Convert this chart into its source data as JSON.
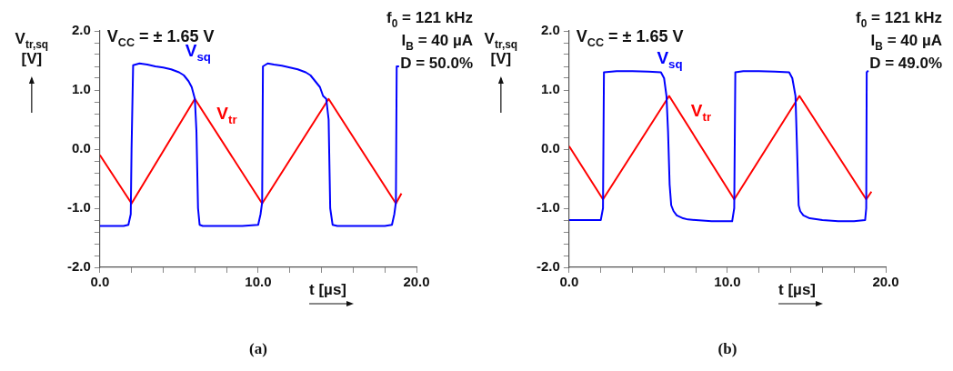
{
  "chart_data": [
    {
      "type": "line",
      "title": "(a)",
      "xlabel": "t [µs]",
      "ylabel": "V$_{tr,sq}$ [V]",
      "annotations": [
        "V$_{CC}$ = ± 1.65 V",
        "f$_{0}$ = 121 kHz",
        "I$_{B}$ = 40 µA",
        "D = 50.0%"
      ],
      "series": [
        {
          "name": "V$_{sq}$",
          "color": "#0000ff",
          "x": [
            0,
            0.5,
            1,
            1.5,
            1.8,
            1.95,
            2.0,
            2.1,
            2.5,
            3.0,
            3.5,
            4.0,
            4.5,
            5.0,
            5.3,
            5.6,
            5.8,
            6.0,
            6.1,
            6.2,
            6.3,
            6.5,
            7,
            8,
            9,
            10.0,
            10.15,
            10.25,
            10.3,
            10.6,
            11,
            11.5,
            12,
            12.5,
            13,
            13.3,
            13.6,
            13.9,
            14.1,
            14.3,
            14.45,
            14.55,
            14.7,
            15,
            16,
            17,
            18,
            18.45,
            18.6,
            18.7,
            18.75,
            18.9
          ],
          "values": [
            -1.3,
            -1.3,
            -1.3,
            -1.3,
            -1.28,
            -1.1,
            0.0,
            1.42,
            1.45,
            1.43,
            1.4,
            1.38,
            1.35,
            1.3,
            1.25,
            1.15,
            1.05,
            0.85,
            0.3,
            -1.0,
            -1.28,
            -1.3,
            -1.3,
            -1.3,
            -1.3,
            -1.28,
            -1.1,
            -0.9,
            1.4,
            1.45,
            1.43,
            1.41,
            1.38,
            1.35,
            1.3,
            1.25,
            1.15,
            1.05,
            0.9,
            0.85,
            0.5,
            -1.0,
            -1.28,
            -1.3,
            -1.3,
            -1.3,
            -1.3,
            -1.28,
            -1.1,
            -0.9,
            1.4,
            1.4
          ]
        },
        {
          "name": "V$_{tr}$",
          "color": "#ff0000",
          "x": [
            0,
            2.0,
            6.0,
            10.25,
            14.45,
            18.7,
            19.05
          ],
          "values": [
            -0.1,
            -0.92,
            0.85,
            -0.92,
            0.85,
            -0.92,
            -0.75
          ]
        }
      ],
      "xlim": [
        0,
        20
      ],
      "xticks": [
        {
          "value": 0,
          "label": "0.0"
        },
        {
          "value": 2,
          "label": null
        },
        {
          "value": 4,
          "label": null
        },
        {
          "value": 6,
          "label": null
        },
        {
          "value": 8,
          "label": null
        },
        {
          "value": 10,
          "label": "10.0"
        },
        {
          "value": 12,
          "label": null
        },
        {
          "value": 14,
          "label": null
        },
        {
          "value": 16,
          "label": null
        },
        {
          "value": 18,
          "label": null
        },
        {
          "value": 20,
          "label": "20.0"
        }
      ],
      "ylim": [
        -2,
        2
      ],
      "yticks": [
        {
          "value": -2,
          "label": "-2.0"
        },
        {
          "value": -1.8,
          "label": null
        },
        {
          "value": -1.6,
          "label": null
        },
        {
          "value": -1.4,
          "label": null
        },
        {
          "value": -1.2,
          "label": null
        },
        {
          "value": -1,
          "label": "-1.0"
        },
        {
          "value": -0.8,
          "label": null
        },
        {
          "value": -0.6,
          "label": null
        },
        {
          "value": -0.4,
          "label": null
        },
        {
          "value": -0.2,
          "label": null
        },
        {
          "value": 0,
          "label": "0.0"
        },
        {
          "value": 0.2,
          "label": null
        },
        {
          "value": 0.4,
          "label": null
        },
        {
          "value": 0.6,
          "label": null
        },
        {
          "value": 0.8,
          "label": null
        },
        {
          "value": 1,
          "label": "1.0"
        },
        {
          "value": 1.2,
          "label": null
        },
        {
          "value": 1.4,
          "label": null
        },
        {
          "value": 1.6,
          "label": null
        },
        {
          "value": 1.8,
          "label": null
        },
        {
          "value": 2,
          "label": "2.0"
        }
      ],
      "marker": "none",
      "line_style": "solid"
    },
    {
      "type": "line",
      "title": "(b)",
      "xlabel": "t [µs]",
      "ylabel": "V$_{tr,sq}$ [V]",
      "annotations": [
        "V$_{CC}$ = ± 1.65 V",
        "f$_{0}$ = 121 kHz",
        "I$_{B}$ = 40 µA",
        "D = 49.0%"
      ],
      "series": [
        {
          "name": "V$_{sq}$",
          "color": "#0000ff",
          "x": [
            0,
            1,
            2.0,
            2.14,
            2.2,
            3,
            4,
            5,
            5.8,
            6.0,
            6.15,
            6.25,
            6.35,
            6.45,
            6.6,
            6.8,
            7.2,
            7.5,
            8,
            9,
            10.3,
            10.43,
            10.5,
            11,
            12,
            13,
            13.9,
            14.1,
            14.3,
            14.4,
            14.5,
            14.6,
            14.8,
            15.2,
            16,
            17,
            18,
            18.7,
            18.77,
            18.8,
            18.9
          ],
          "values": [
            -1.2,
            -1.2,
            -1.2,
            -1.0,
            1.3,
            1.32,
            1.32,
            1.31,
            1.3,
            1.2,
            0.9,
            0.3,
            -0.6,
            -0.95,
            -1.05,
            -1.12,
            -1.17,
            -1.19,
            -1.2,
            -1.22,
            -1.22,
            -1.0,
            1.3,
            1.32,
            1.32,
            1.31,
            1.3,
            1.2,
            0.9,
            0.0,
            -0.95,
            -1.05,
            -1.12,
            -1.17,
            -1.2,
            -1.22,
            -1.22,
            -1.2,
            -1.0,
            1.3,
            1.33
          ]
        },
        {
          "name": "V$_{tr}$",
          "color": "#ff0000",
          "x": [
            0,
            2.14,
            6.32,
            10.43,
            14.55,
            18.77,
            19.1
          ],
          "values": [
            0.05,
            -0.85,
            0.9,
            -0.85,
            0.9,
            -0.85,
            -0.72
          ]
        }
      ],
      "xlim": [
        0,
        20
      ],
      "xticks": [
        {
          "value": 0,
          "label": "0.0"
        },
        {
          "value": 2,
          "label": null
        },
        {
          "value": 4,
          "label": null
        },
        {
          "value": 6,
          "label": null
        },
        {
          "value": 8,
          "label": null
        },
        {
          "value": 10,
          "label": "10.0"
        },
        {
          "value": 12,
          "label": null
        },
        {
          "value": 14,
          "label": null
        },
        {
          "value": 16,
          "label": null
        },
        {
          "value": 18,
          "label": null
        },
        {
          "value": 20,
          "label": "20.0"
        }
      ],
      "ylim": [
        -2,
        2
      ],
      "yticks": [
        {
          "value": -2,
          "label": "-2.0"
        },
        {
          "value": -1.8,
          "label": null
        },
        {
          "value": -1.6,
          "label": null
        },
        {
          "value": -1.4,
          "label": null
        },
        {
          "value": -1.2,
          "label": null
        },
        {
          "value": -1,
          "label": "-1.0"
        },
        {
          "value": -0.8,
          "label": null
        },
        {
          "value": -0.6,
          "label": null
        },
        {
          "value": -0.4,
          "label": null
        },
        {
          "value": -0.2,
          "label": null
        },
        {
          "value": 0,
          "label": "0.0"
        },
        {
          "value": 0.2,
          "label": null
        },
        {
          "value": 0.4,
          "label": null
        },
        {
          "value": 0.6,
          "label": null
        },
        {
          "value": 0.8,
          "label": null
        },
        {
          "value": 1,
          "label": "1.0"
        },
        {
          "value": 1.2,
          "label": null
        },
        {
          "value": 1.4,
          "label": null
        },
        {
          "value": 1.6,
          "label": null
        },
        {
          "value": 1.8,
          "label": null
        },
        {
          "value": 2,
          "label": "2.0"
        }
      ],
      "marker": "none",
      "line_style": "solid"
    }
  ]
}
